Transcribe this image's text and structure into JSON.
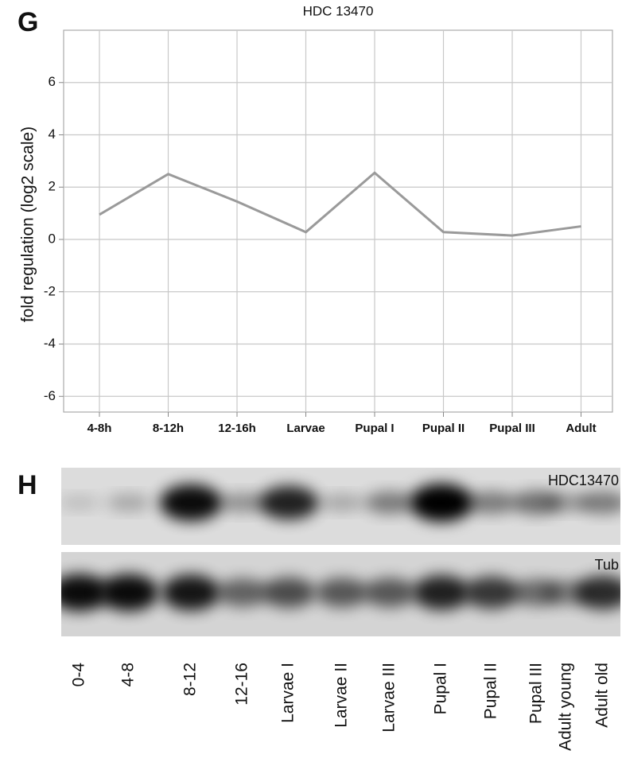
{
  "chart_data": {
    "type": "line",
    "panel_label": "G",
    "title": "HDC 13470",
    "y_label": "fold regulation (log2 scale)",
    "categories": [
      "4-8h",
      "8-12h",
      "12-16h",
      "Larvae",
      "Pupal I",
      "Pupal II",
      "Pupal III",
      "Adult"
    ],
    "series": [
      {
        "name": "HDC 13470",
        "color": "#9a9a9a",
        "values": [
          0.95,
          2.5,
          1.45,
          0.28,
          2.55,
          0.28,
          0.15,
          0.5
        ]
      }
    ],
    "ylim": [
      -6.6,
      8
    ],
    "yticks": [
      -6,
      -4,
      -2,
      0,
      2,
      4,
      6
    ],
    "grid": true
  },
  "blot": {
    "panel_label": "H",
    "rows": [
      "HDC13470",
      "Tub"
    ],
    "lanes": [
      "0-4",
      "4-8",
      "8-12",
      "12-16",
      "Larvae I",
      "Larvae II",
      "Larvae III",
      "Pupal I",
      "Pupal II",
      "Pupal III",
      "Adult young",
      "Adult old"
    ]
  }
}
